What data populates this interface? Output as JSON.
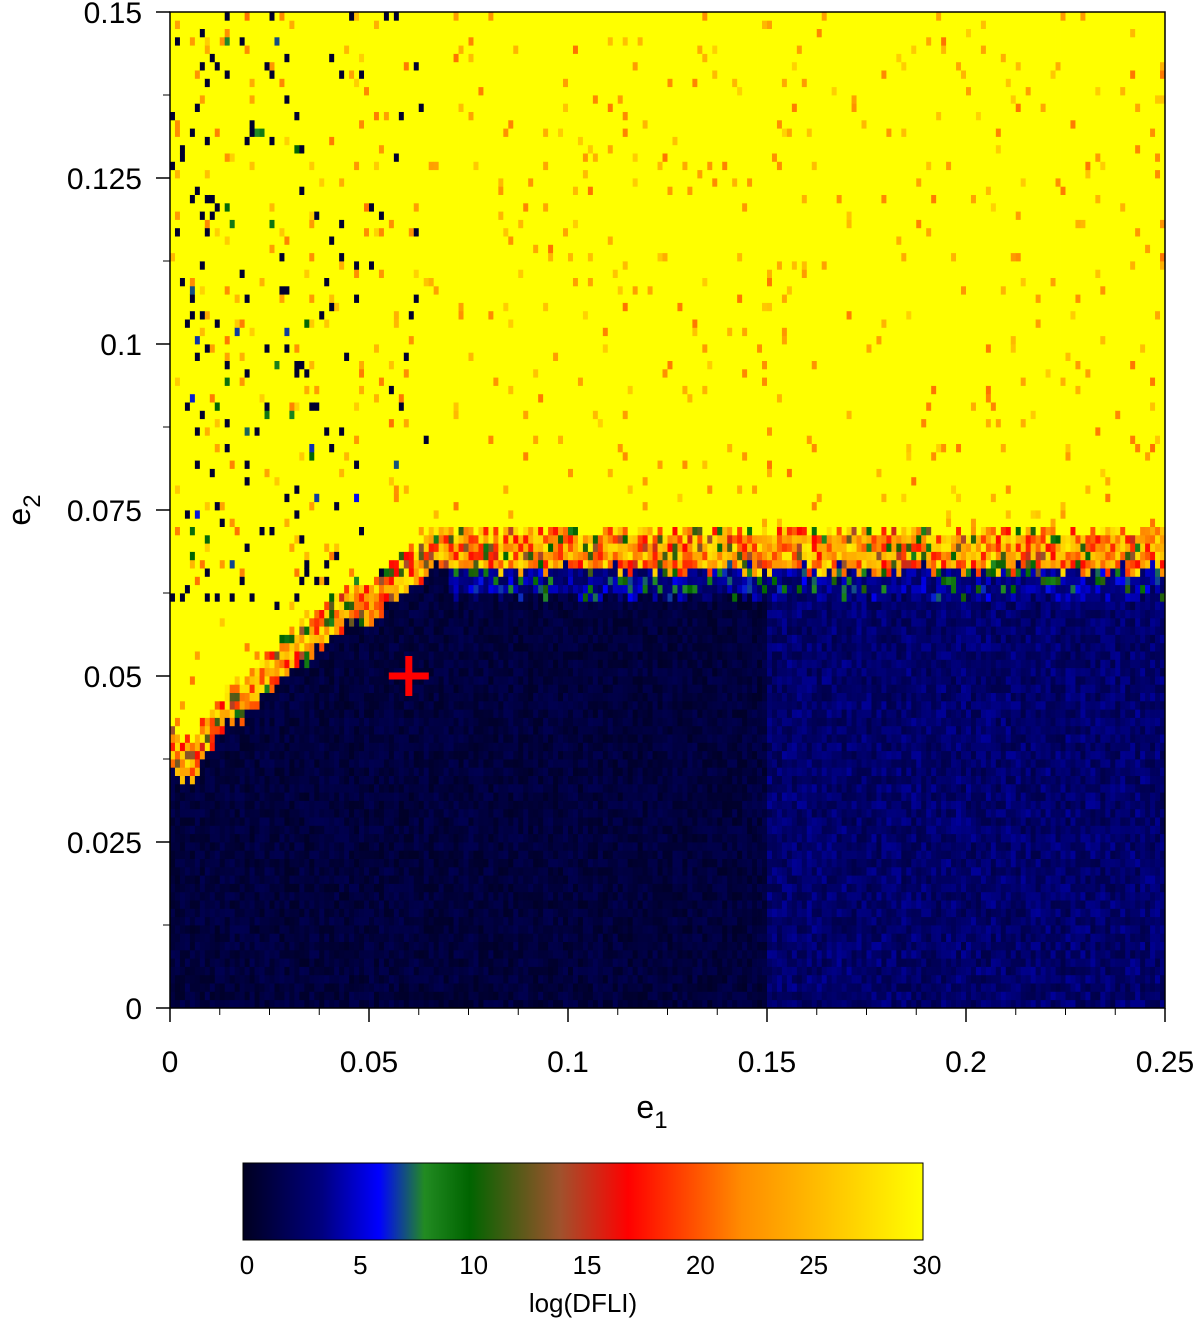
{
  "chart_data": {
    "type": "heatmap",
    "xlabel": "e1",
    "ylabel": "e2",
    "xlim": [
      0,
      0.25
    ],
    "ylim": [
      0,
      0.15
    ],
    "xticks": [
      "0",
      "0.05",
      "0.1",
      "0.15",
      "0.2",
      "0.25"
    ],
    "yticks": [
      "0",
      "0.025",
      "0.05",
      "0.075",
      "0.1",
      "0.125",
      "0.15"
    ],
    "x_tick_values": [
      0,
      0.05,
      0.1,
      0.15,
      0.2,
      0.25
    ],
    "y_tick_values": [
      0,
      0.025,
      0.05,
      0.075,
      0.1,
      0.125,
      0.15
    ],
    "grid": false,
    "grid_resolution": {
      "nx": 200,
      "ny": 120
    },
    "chaotic_region": "high e2 (above ~0.066 for e1 > 0.065, boundary falling toward e2 ~0.035 near e1 ~0.005) with log(DFLI) near 30 (yellow)",
    "regular_region": "low e2, log(DFLI) near 0-5 (dark blue)",
    "boundary_samples_e1": [
      0,
      0.005,
      0.01,
      0.015,
      0.02,
      0.025,
      0.03,
      0.035,
      0.04,
      0.045,
      0.05,
      0.055,
      0.06,
      0.065,
      0.07,
      0.1,
      0.15,
      0.2,
      0.25
    ],
    "boundary_samples_e2": [
      0.036,
      0.034,
      0.038,
      0.043,
      0.044,
      0.048,
      0.05,
      0.053,
      0.056,
      0.058,
      0.058,
      0.06,
      0.063,
      0.066,
      0.066,
      0.066,
      0.066,
      0.066,
      0.066
    ],
    "marker": {
      "symbol": "cross",
      "e1": 0.06,
      "e2": 0.05,
      "color": "#ff0000"
    },
    "colorbar": {
      "label": "log(DFLI)",
      "range": [
        0,
        30
      ],
      "ticks": [
        "0",
        "5",
        "10",
        "15",
        "20",
        "25",
        "30"
      ],
      "tick_values": [
        0,
        5,
        10,
        15,
        20,
        25,
        30
      ],
      "stops": [
        {
          "value": 0,
          "color": "#000020"
        },
        {
          "value": 3.5,
          "color": "#000080"
        },
        {
          "value": 6,
          "color": "#0000ff"
        },
        {
          "value": 8,
          "color": "#228b22"
        },
        {
          "value": 10,
          "color": "#006400"
        },
        {
          "value": 14,
          "color": "#a0522d"
        },
        {
          "value": 17,
          "color": "#ff0000"
        },
        {
          "value": 22,
          "color": "#ff8c00"
        },
        {
          "value": 30,
          "color": "#ffff00"
        }
      ]
    }
  }
}
